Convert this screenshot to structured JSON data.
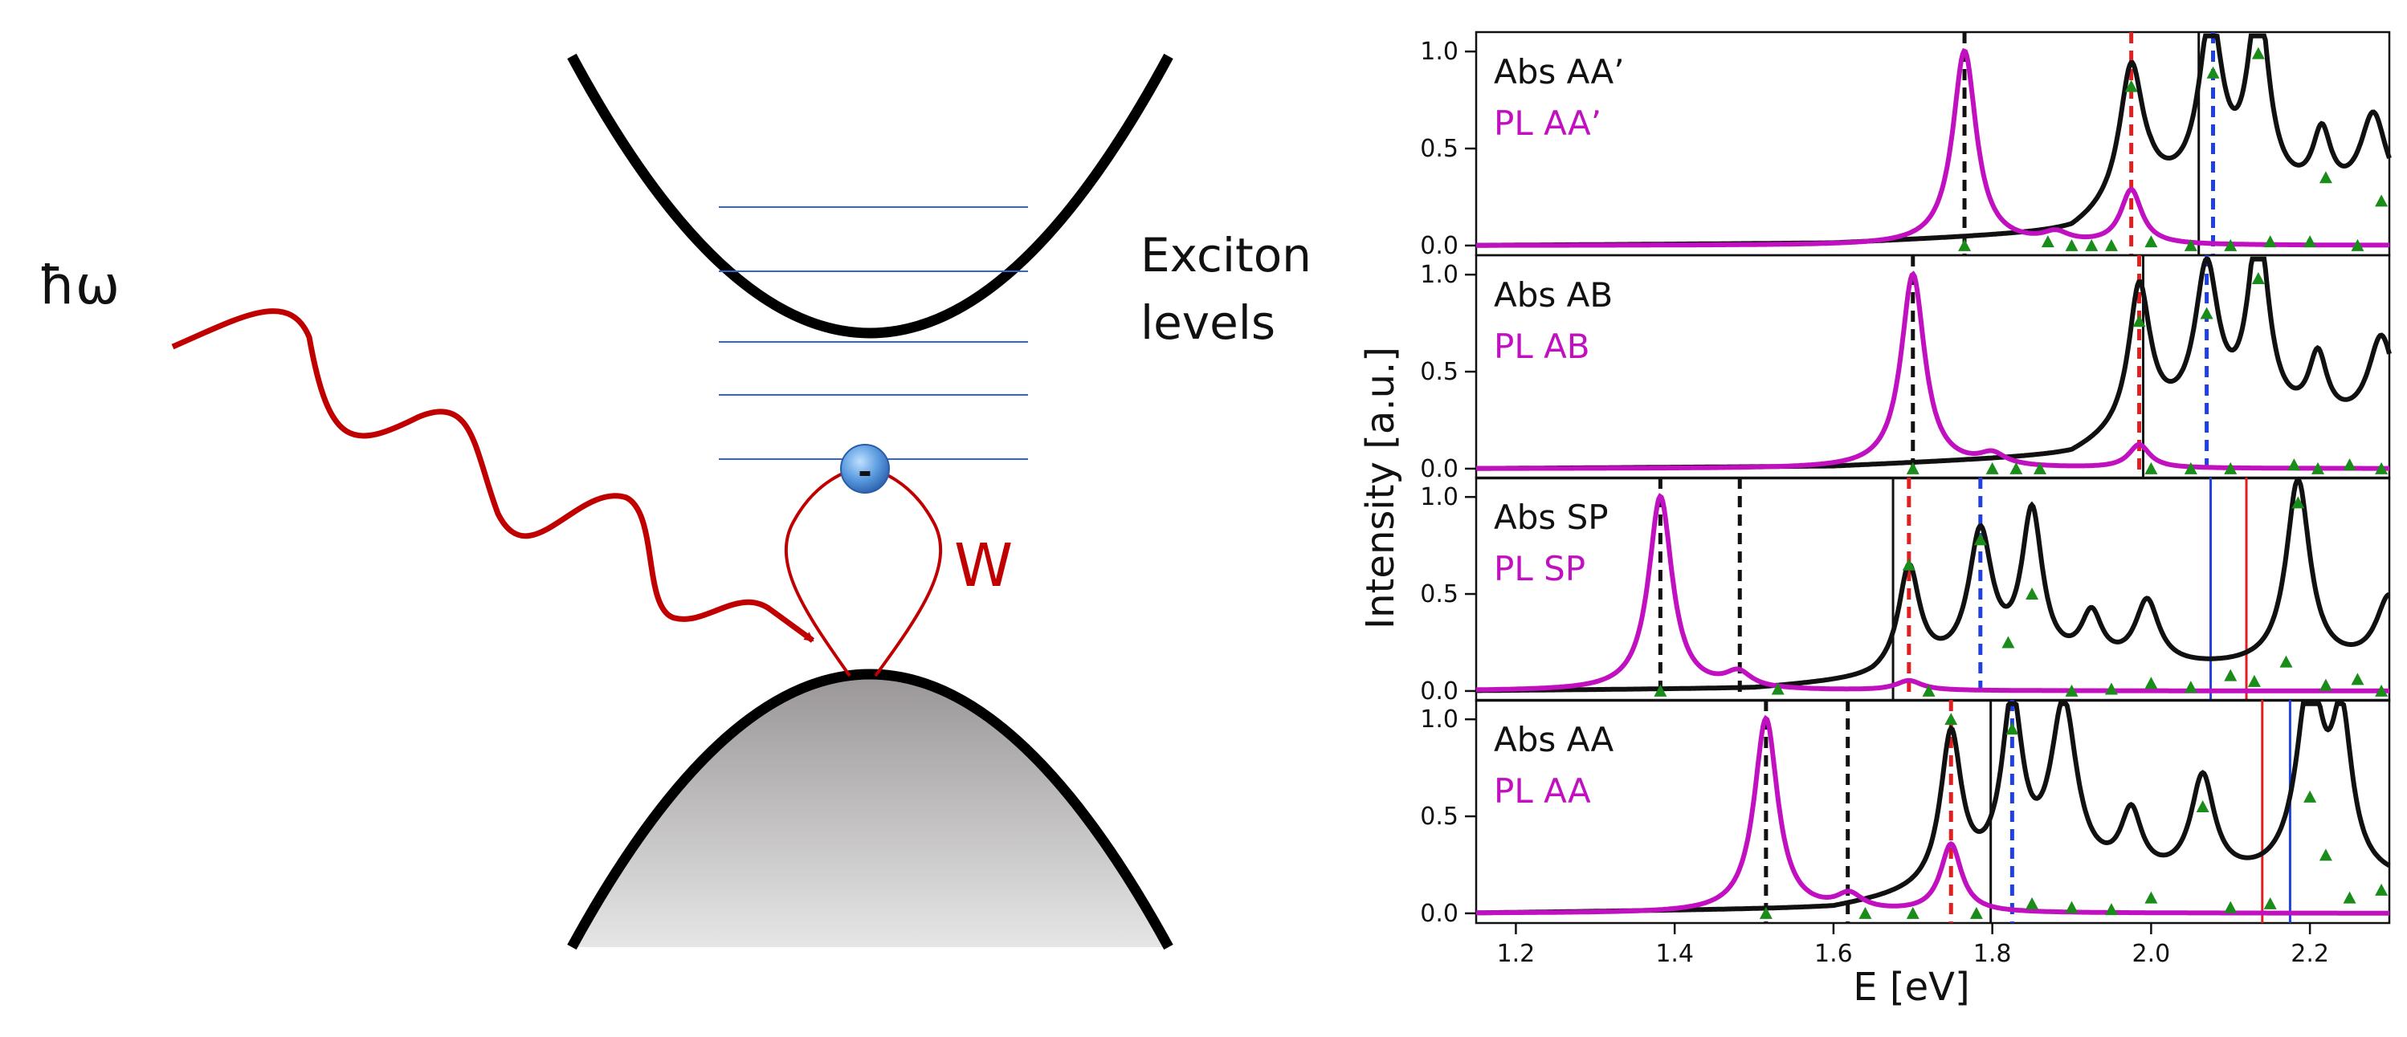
{
  "diagram": {
    "photon_label": "ħω",
    "exciton_label_line1": "Exciton",
    "exciton_label_line2": "levels",
    "interaction_label": "W",
    "electron_label": "-",
    "colors": {
      "band": "#000000",
      "photon": "#c00000",
      "levels": "#3366cc",
      "interaction": "#c00000",
      "electron": "#3f7fc8"
    }
  },
  "chart_data": {
    "type": "line",
    "xlabel": "E [eV]",
    "ylabel": "Intensity [a.u.]",
    "xlim": [
      1.15,
      2.3
    ],
    "ylim": [
      -0.05,
      1.1
    ],
    "xticks": [
      "1.2",
      "1.4",
      "1.6",
      "1.8",
      "2.0",
      "2.2"
    ],
    "xtick_values": [
      1.2,
      1.4,
      1.6,
      1.8,
      2.0,
      2.2
    ],
    "yticks": [
      "0.0",
      "0.5",
      "1.0"
    ],
    "ytick_values": [
      0.0,
      0.5,
      1.0
    ],
    "colors": {
      "abs": "#111111",
      "pl": "#c010c0",
      "markers": "#1a8c1a",
      "red": "#e02020",
      "blue": "#2040e0"
    },
    "panels": [
      {
        "abs_label": "Abs AA’",
        "pl_label": "PL AA’",
        "abs_peaks": [
          [
            1.975,
            0.7,
            0.018
          ],
          [
            2.075,
            0.88,
            0.018
          ],
          [
            2.135,
            0.98,
            0.016
          ],
          [
            2.215,
            0.32,
            0.014
          ],
          [
            2.28,
            0.45,
            0.02
          ]
        ],
        "abs_baseline": [
          [
            1.15,
            0.0
          ],
          [
            1.6,
            0.01
          ],
          [
            1.9,
            0.06
          ],
          [
            2.0,
            0.25
          ],
          [
            2.3,
            0.2
          ]
        ],
        "pl_peaks": [
          [
            1.765,
            1.0,
            0.018
          ],
          [
            1.975,
            0.28,
            0.016
          ],
          [
            1.88,
            0.05,
            0.02
          ]
        ],
        "vlines": [
          {
            "x": 1.765,
            "style": "dashed",
            "color": "black"
          },
          {
            "x": 1.975,
            "style": "dashed",
            "color": "red"
          },
          {
            "x": 2.078,
            "style": "dashed",
            "color": "blue"
          },
          {
            "x": 2.06,
            "style": "solid",
            "color": "black"
          }
        ],
        "markers": [
          [
            1.765,
            0.0
          ],
          [
            1.87,
            0.02
          ],
          [
            1.9,
            0.0
          ],
          [
            1.925,
            0.0
          ],
          [
            1.95,
            0.0
          ],
          [
            1.975,
            0.82
          ],
          [
            2.0,
            0.02
          ],
          [
            2.05,
            0.0
          ],
          [
            2.078,
            0.89
          ],
          [
            2.1,
            0.0
          ],
          [
            2.135,
            0.99
          ],
          [
            2.15,
            0.02
          ],
          [
            2.2,
            0.02
          ],
          [
            2.22,
            0.35
          ],
          [
            2.26,
            0.0
          ],
          [
            2.29,
            0.23
          ]
        ]
      },
      {
        "abs_label": "Abs AB",
        "pl_label": "PL AB",
        "abs_peaks": [
          [
            1.985,
            0.72,
            0.016
          ],
          [
            2.07,
            0.78,
            0.018
          ],
          [
            2.135,
            0.98,
            0.016
          ],
          [
            2.21,
            0.33,
            0.014
          ],
          [
            2.29,
            0.46,
            0.02
          ]
        ],
        "abs_baseline": [
          [
            1.15,
            0.0
          ],
          [
            1.6,
            0.01
          ],
          [
            1.9,
            0.06
          ],
          [
            2.0,
            0.22
          ],
          [
            2.3,
            0.2
          ]
        ],
        "pl_peaks": [
          [
            1.7,
            1.0,
            0.018
          ],
          [
            1.985,
            0.12,
            0.016
          ],
          [
            1.8,
            0.06,
            0.02
          ]
        ],
        "vlines": [
          {
            "x": 1.7,
            "style": "dashed",
            "color": "black"
          },
          {
            "x": 1.985,
            "style": "dashed",
            "color": "red"
          },
          {
            "x": 2.07,
            "style": "dashed",
            "color": "blue"
          },
          {
            "x": 1.99,
            "style": "solid",
            "color": "black"
          }
        ],
        "markers": [
          [
            1.7,
            0.0
          ],
          [
            1.8,
            0.0
          ],
          [
            1.83,
            0.0
          ],
          [
            1.86,
            0.0
          ],
          [
            1.985,
            0.76
          ],
          [
            2.0,
            0.0
          ],
          [
            2.05,
            0.0
          ],
          [
            2.07,
            0.8
          ],
          [
            2.1,
            0.0
          ],
          [
            2.135,
            0.98
          ],
          [
            2.18,
            0.02
          ],
          [
            2.21,
            0.0
          ],
          [
            2.25,
            0.02
          ],
          [
            2.29,
            0.0
          ]
        ]
      },
      {
        "abs_label": "Abs SP",
        "pl_label": "PL SP",
        "abs_peaks": [
          [
            1.695,
            0.52,
            0.016
          ],
          [
            1.785,
            0.68,
            0.018
          ],
          [
            1.85,
            0.78,
            0.016
          ],
          [
            1.925,
            0.25,
            0.016
          ],
          [
            1.995,
            0.33,
            0.018
          ],
          [
            2.185,
            0.96,
            0.018
          ],
          [
            2.3,
            0.35,
            0.02
          ]
        ],
        "abs_baseline": [
          [
            1.15,
            0.0
          ],
          [
            1.5,
            0.01
          ],
          [
            1.65,
            0.05
          ],
          [
            1.7,
            0.1
          ],
          [
            2.3,
            0.12
          ]
        ],
        "pl_peaks": [
          [
            1.382,
            1.0,
            0.018
          ],
          [
            1.48,
            0.08,
            0.02
          ],
          [
            1.695,
            0.05,
            0.02
          ]
        ],
        "vlines": [
          {
            "x": 1.382,
            "style": "dashed",
            "color": "black"
          },
          {
            "x": 1.482,
            "style": "dashed",
            "color": "black"
          },
          {
            "x": 1.695,
            "style": "dashed",
            "color": "red"
          },
          {
            "x": 1.785,
            "style": "dashed",
            "color": "blue"
          },
          {
            "x": 1.675,
            "style": "solid",
            "color": "black"
          },
          {
            "x": 2.075,
            "style": "solid",
            "color": "blue"
          },
          {
            "x": 2.12,
            "style": "solid",
            "color": "red"
          }
        ],
        "markers": [
          [
            1.382,
            0.0
          ],
          [
            1.53,
            0.01
          ],
          [
            1.695,
            0.65
          ],
          [
            1.72,
            0.0
          ],
          [
            1.785,
            0.78
          ],
          [
            1.82,
            0.25
          ],
          [
            1.85,
            0.5
          ],
          [
            1.9,
            0.0
          ],
          [
            1.95,
            0.01
          ],
          [
            2.0,
            0.04
          ],
          [
            2.05,
            0.02
          ],
          [
            2.1,
            0.08
          ],
          [
            2.13,
            0.05
          ],
          [
            2.17,
            0.15
          ],
          [
            2.185,
            0.97
          ],
          [
            2.22,
            0.03
          ],
          [
            2.26,
            0.06
          ],
          [
            2.29,
            0.0
          ]
        ]
      },
      {
        "abs_label": "Abs AA",
        "pl_label": "PL AA",
        "abs_peaks": [
          [
            1.748,
            0.78,
            0.016
          ],
          [
            1.825,
            0.88,
            0.016
          ],
          [
            1.89,
            0.88,
            0.02
          ],
          [
            1.975,
            0.32,
            0.016
          ],
          [
            2.065,
            0.52,
            0.018
          ],
          [
            2.2,
            1.0,
            0.02
          ],
          [
            2.24,
            0.75,
            0.016
          ]
        ],
        "abs_baseline": [
          [
            1.15,
            0.0
          ],
          [
            1.6,
            0.02
          ],
          [
            1.7,
            0.08
          ],
          [
            1.8,
            0.15
          ],
          [
            2.3,
            0.15
          ]
        ],
        "pl_peaks": [
          [
            1.515,
            1.0,
            0.018
          ],
          [
            1.62,
            0.08,
            0.02
          ],
          [
            1.748,
            0.35,
            0.016
          ]
        ],
        "vlines": [
          {
            "x": 1.515,
            "style": "dashed",
            "color": "black"
          },
          {
            "x": 1.618,
            "style": "dashed",
            "color": "black"
          },
          {
            "x": 1.748,
            "style": "dashed",
            "color": "red"
          },
          {
            "x": 1.825,
            "style": "dashed",
            "color": "blue"
          },
          {
            "x": 1.798,
            "style": "solid",
            "color": "black"
          },
          {
            "x": 2.14,
            "style": "solid",
            "color": "red"
          },
          {
            "x": 2.175,
            "style": "solid",
            "color": "blue"
          }
        ],
        "markers": [
          [
            1.515,
            0.0
          ],
          [
            1.64,
            0.0
          ],
          [
            1.7,
            0.0
          ],
          [
            1.748,
            1.0
          ],
          [
            1.78,
            0.0
          ],
          [
            1.825,
            0.95
          ],
          [
            1.85,
            0.05
          ],
          [
            1.9,
            0.03
          ],
          [
            1.95,
            0.02
          ],
          [
            2.0,
            0.08
          ],
          [
            2.065,
            0.55
          ],
          [
            2.1,
            0.03
          ],
          [
            2.15,
            0.05
          ],
          [
            2.2,
            0.6
          ],
          [
            2.22,
            0.3
          ],
          [
            2.25,
            0.08
          ],
          [
            2.29,
            0.12
          ]
        ]
      }
    ]
  }
}
